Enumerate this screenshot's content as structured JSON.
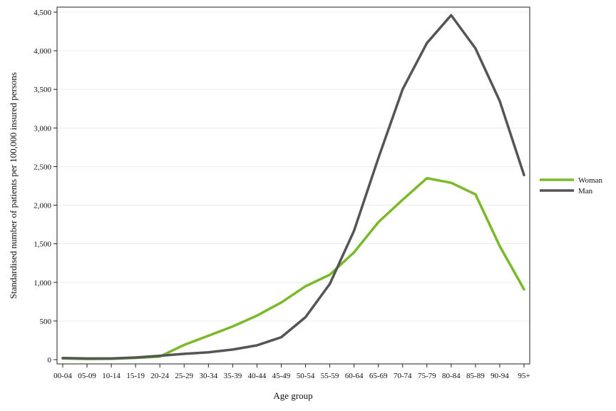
{
  "chart_data": {
    "type": "line",
    "title": "",
    "xlabel": "Age group",
    "ylabel": "Standardised number of patients per 100,000 insured persons",
    "categories": [
      "00-04",
      "05-09",
      "10-14",
      "15-19",
      "20-24",
      "25-29",
      "30-34",
      "35-39",
      "40-44",
      "45-49",
      "50-54",
      "55-59",
      "60-64",
      "65-69",
      "70-74",
      "75-79",
      "80-84",
      "85-89",
      "90-94",
      "95+"
    ],
    "ylim": [
      0,
      4500
    ],
    "yticks": [
      0,
      500,
      1000,
      1500,
      2000,
      2500,
      3000,
      3500,
      4000,
      4500
    ],
    "ytick_labels": [
      "0",
      "500",
      "1,000",
      "1,500",
      "2,000",
      "2,500",
      "3,000",
      "3,500",
      "4,000",
      "4,500"
    ],
    "grid": "horizontal",
    "legend_position": "right",
    "series": [
      {
        "name": "Woman",
        "color": "#7ab929",
        "values": [
          15,
          8,
          10,
          22,
          40,
          190,
          310,
          430,
          570,
          740,
          950,
          1100,
          1390,
          1780,
          2070,
          2350,
          2290,
          2140,
          1470,
          910
        ]
      },
      {
        "name": "Man",
        "color": "#555555",
        "values": [
          20,
          15,
          15,
          28,
          50,
          75,
          95,
          130,
          185,
          290,
          550,
          980,
          1670,
          2610,
          3500,
          4100,
          4460,
          4030,
          3350,
          2390
        ]
      }
    ]
  }
}
